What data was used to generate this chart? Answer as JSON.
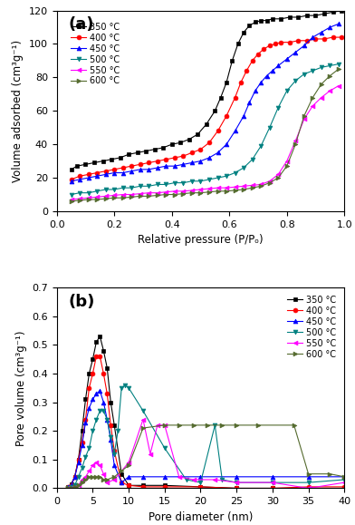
{
  "plot_a": {
    "title": "(a)",
    "xlabel": "Relative pressure (P/Pₒ)",
    "ylabel": "Volume adsorbed (cm³g⁻¹)",
    "xlim": [
      0.0,
      1.0
    ],
    "ylim": [
      0,
      120
    ],
    "yticks": [
      0,
      20,
      40,
      60,
      80,
      100,
      120
    ],
    "xticks": [
      0.0,
      0.2,
      0.4,
      0.6,
      0.8,
      1.0
    ],
    "series": [
      {
        "label": "350 °C",
        "color": "#000000",
        "marker": "s",
        "x": [
          0.05,
          0.07,
          0.1,
          0.13,
          0.16,
          0.19,
          0.22,
          0.25,
          0.28,
          0.31,
          0.34,
          0.37,
          0.4,
          0.43,
          0.46,
          0.49,
          0.52,
          0.55,
          0.57,
          0.59,
          0.61,
          0.63,
          0.65,
          0.67,
          0.69,
          0.71,
          0.73,
          0.75,
          0.78,
          0.81,
          0.84,
          0.87,
          0.9,
          0.93,
          0.96,
          0.99
        ],
        "y": [
          25,
          27,
          28,
          29,
          30,
          31,
          32,
          34,
          35,
          36,
          37,
          38,
          40,
          41,
          43,
          46,
          52,
          60,
          68,
          77,
          90,
          100,
          107,
          111,
          113,
          114,
          114,
          115,
          115,
          116,
          116,
          117,
          117,
          118,
          119,
          120
        ]
      },
      {
        "label": "400 °C",
        "color": "#ff0000",
        "marker": "o",
        "x": [
          0.05,
          0.08,
          0.11,
          0.14,
          0.17,
          0.2,
          0.23,
          0.26,
          0.29,
          0.32,
          0.35,
          0.38,
          0.41,
          0.44,
          0.47,
          0.5,
          0.53,
          0.56,
          0.59,
          0.62,
          0.64,
          0.66,
          0.68,
          0.7,
          0.72,
          0.74,
          0.76,
          0.78,
          0.81,
          0.84,
          0.87,
          0.9,
          0.93,
          0.96,
          0.99
        ],
        "y": [
          19,
          21,
          22,
          23,
          24,
          25,
          26,
          27,
          28,
          29,
          30,
          31,
          32,
          33,
          35,
          37,
          41,
          48,
          57,
          68,
          77,
          84,
          90,
          94,
          97,
          99,
          100,
          101,
          101,
          102,
          102,
          103,
          103,
          104,
          104
        ]
      },
      {
        "label": "450 °C",
        "color": "#0000ff",
        "marker": "^",
        "x": [
          0.05,
          0.08,
          0.11,
          0.14,
          0.17,
          0.2,
          0.23,
          0.26,
          0.29,
          0.32,
          0.35,
          0.38,
          0.41,
          0.44,
          0.47,
          0.5,
          0.53,
          0.56,
          0.59,
          0.62,
          0.65,
          0.67,
          0.69,
          0.71,
          0.73,
          0.75,
          0.77,
          0.8,
          0.83,
          0.86,
          0.89,
          0.92,
          0.95,
          0.98
        ],
        "y": [
          18,
          19,
          20,
          21,
          22,
          23,
          23,
          24,
          25,
          25,
          26,
          27,
          27,
          28,
          29,
          30,
          32,
          35,
          40,
          48,
          57,
          65,
          72,
          77,
          81,
          84,
          87,
          91,
          95,
          99,
          104,
          107,
          110,
          112
        ]
      },
      {
        "label": "500 °C",
        "color": "#008080",
        "marker": "v",
        "x": [
          0.05,
          0.08,
          0.11,
          0.14,
          0.17,
          0.2,
          0.23,
          0.26,
          0.29,
          0.32,
          0.35,
          0.38,
          0.41,
          0.44,
          0.47,
          0.5,
          0.53,
          0.56,
          0.59,
          0.62,
          0.65,
          0.68,
          0.71,
          0.74,
          0.77,
          0.8,
          0.83,
          0.86,
          0.89,
          0.92,
          0.95,
          0.98
        ],
        "y": [
          10,
          11,
          11,
          12,
          13,
          13,
          14,
          14,
          15,
          15,
          16,
          16,
          17,
          17,
          18,
          18,
          19,
          20,
          21,
          23,
          26,
          31,
          39,
          50,
          62,
          72,
          78,
          82,
          84,
          86,
          87,
          88
        ]
      },
      {
        "label": "550 °C",
        "color": "#ff00ff",
        "marker": "<",
        "x": [
          0.05,
          0.08,
          0.11,
          0.14,
          0.17,
          0.2,
          0.23,
          0.26,
          0.29,
          0.32,
          0.35,
          0.38,
          0.41,
          0.44,
          0.47,
          0.5,
          0.53,
          0.56,
          0.59,
          0.62,
          0.65,
          0.68,
          0.71,
          0.74,
          0.77,
          0.8,
          0.83,
          0.86,
          0.89,
          0.92,
          0.95,
          0.98
        ],
        "y": [
          7,
          7.5,
          8,
          8.5,
          9,
          9.5,
          10,
          10,
          10.5,
          11,
          11,
          11.5,
          12,
          12,
          12.5,
          13,
          13.5,
          14,
          14,
          14.5,
          15,
          15.5,
          16,
          18,
          22,
          30,
          42,
          55,
          63,
          68,
          72,
          75
        ]
      },
      {
        "label": "600 °C",
        "color": "#556b2f",
        "marker": ">",
        "x": [
          0.05,
          0.08,
          0.11,
          0.14,
          0.17,
          0.2,
          0.23,
          0.26,
          0.29,
          0.32,
          0.35,
          0.38,
          0.41,
          0.44,
          0.47,
          0.5,
          0.53,
          0.56,
          0.59,
          0.62,
          0.65,
          0.68,
          0.71,
          0.74,
          0.77,
          0.8,
          0.83,
          0.86,
          0.89,
          0.92,
          0.95,
          0.98
        ],
        "y": [
          6,
          6.5,
          7,
          7,
          7.5,
          8,
          8,
          8.5,
          9,
          9,
          9.5,
          10,
          10,
          10.5,
          11,
          11,
          11.5,
          12,
          12,
          12.5,
          13,
          14,
          15,
          17,
          20,
          27,
          40,
          57,
          68,
          76,
          81,
          85
        ]
      }
    ]
  },
  "plot_b": {
    "title": "(b)",
    "xlabel": "Pore diameter (nm)",
    "ylabel": "Pore volume (cm³g⁻¹)",
    "xlim": [
      0,
      40
    ],
    "ylim": [
      0,
      0.7
    ],
    "yticks": [
      0.0,
      0.1,
      0.2,
      0.3,
      0.4,
      0.5,
      0.6,
      0.7
    ],
    "xticks": [
      0,
      5,
      10,
      15,
      20,
      25,
      30,
      35,
      40
    ],
    "series": [
      {
        "label": "350 °C",
        "color": "#000000",
        "marker": "s",
        "x": [
          1.5,
          2.0,
          2.5,
          3.0,
          3.5,
          4.0,
          4.5,
          5.0,
          5.5,
          6.0,
          6.5,
          7.0,
          7.5,
          8.0,
          9.0,
          10.0,
          12.0,
          15.0,
          20.0,
          25.0,
          30.0,
          35.0,
          40.0
        ],
        "y": [
          0.005,
          0.015,
          0.04,
          0.1,
          0.2,
          0.31,
          0.4,
          0.45,
          0.51,
          0.53,
          0.48,
          0.42,
          0.3,
          0.22,
          0.05,
          0.01,
          0.01,
          0.01,
          0.005,
          0.0,
          0.0,
          0.0,
          0.0
        ]
      },
      {
        "label": "400 °C",
        "color": "#ff0000",
        "marker": "o",
        "x": [
          1.5,
          2.0,
          2.5,
          3.0,
          3.5,
          4.0,
          4.5,
          5.0,
          5.5,
          6.0,
          6.5,
          7.0,
          7.5,
          8.0,
          9.0,
          10.0,
          12.0,
          15.0,
          20.0,
          25.0,
          30.0,
          35.0,
          40.0
        ],
        "y": [
          0.005,
          0.01,
          0.04,
          0.1,
          0.16,
          0.24,
          0.35,
          0.4,
          0.46,
          0.46,
          0.4,
          0.33,
          0.22,
          0.13,
          0.02,
          0.01,
          0.005,
          0.005,
          0.005,
          0.0,
          0.0,
          0.005,
          0.005
        ]
      },
      {
        "label": "450 °C",
        "color": "#0000ff",
        "marker": "^",
        "x": [
          1.5,
          2.0,
          2.5,
          3.0,
          3.5,
          4.0,
          4.5,
          5.0,
          5.5,
          6.0,
          6.5,
          7.0,
          7.5,
          8.0,
          9.0,
          10.0,
          12.0,
          15.0,
          20.0,
          25.0,
          30.0,
          35.0,
          40.0
        ],
        "y": [
          0.005,
          0.01,
          0.04,
          0.09,
          0.15,
          0.23,
          0.28,
          0.31,
          0.33,
          0.34,
          0.3,
          0.24,
          0.17,
          0.08,
          0.02,
          0.04,
          0.04,
          0.04,
          0.04,
          0.04,
          0.04,
          0.04,
          0.04
        ]
      },
      {
        "label": "500 °C",
        "color": "#008080",
        "marker": "v",
        "x": [
          1.5,
          2.0,
          2.5,
          3.0,
          3.5,
          4.0,
          4.5,
          5.0,
          5.5,
          6.0,
          6.5,
          7.0,
          7.5,
          8.0,
          8.5,
          9.0,
          9.5,
          10.0,
          12.0,
          15.0,
          18.0,
          20.0,
          22.0,
          23.0,
          25.0,
          30.0,
          35.0,
          40.0
        ],
        "y": [
          0.0,
          0.005,
          0.01,
          0.04,
          0.07,
          0.11,
          0.14,
          0.2,
          0.24,
          0.27,
          0.27,
          0.24,
          0.18,
          0.12,
          0.2,
          0.35,
          0.36,
          0.35,
          0.27,
          0.14,
          0.03,
          0.02,
          0.22,
          0.03,
          0.02,
          0.02,
          0.02,
          0.03
        ]
      },
      {
        "label": "550 °C",
        "color": "#ff00ff",
        "marker": "<",
        "x": [
          1.5,
          2.0,
          2.5,
          3.0,
          3.5,
          4.0,
          4.5,
          5.0,
          5.5,
          6.0,
          6.5,
          7.0,
          8.0,
          10.0,
          12.0,
          13.0,
          14.0,
          15.0,
          17.0,
          19.0,
          22.0,
          25.0,
          30.0,
          35.0,
          40.0
        ],
        "y": [
          0.0,
          0.0,
          0.005,
          0.01,
          0.03,
          0.04,
          0.06,
          0.08,
          0.09,
          0.08,
          0.05,
          0.02,
          0.03,
          0.09,
          0.24,
          0.12,
          0.22,
          0.22,
          0.04,
          0.03,
          0.03,
          0.02,
          0.02,
          0.0,
          0.02
        ]
      },
      {
        "label": "600 °C",
        "color": "#556b2f",
        "marker": ">",
        "x": [
          1.5,
          2.0,
          2.5,
          3.0,
          3.5,
          4.0,
          4.5,
          5.0,
          5.5,
          6.0,
          6.5,
          7.0,
          8.0,
          9.0,
          10.0,
          12.0,
          15.0,
          17.0,
          19.0,
          21.0,
          23.0,
          25.0,
          28.0,
          33.0,
          35.0,
          38.0,
          40.0
        ],
        "y": [
          0.0,
          0.0,
          0.005,
          0.01,
          0.02,
          0.03,
          0.04,
          0.04,
          0.04,
          0.04,
          0.03,
          0.03,
          0.04,
          0.06,
          0.08,
          0.21,
          0.22,
          0.22,
          0.22,
          0.22,
          0.22,
          0.22,
          0.22,
          0.22,
          0.05,
          0.05,
          0.04
        ]
      }
    ]
  }
}
